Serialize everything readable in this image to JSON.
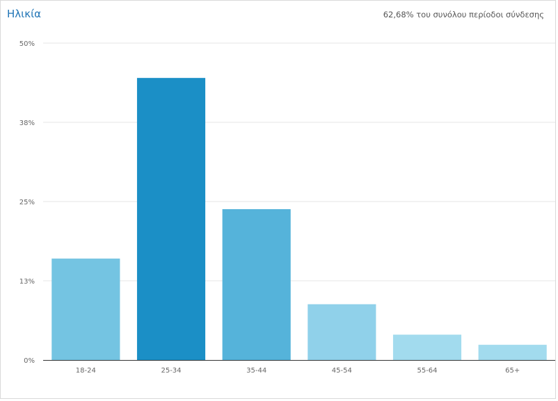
{
  "header": {
    "title": "Ηλικία",
    "summary": "62,68% του συνόλου περίοδοι σύνδεσης"
  },
  "chart_data": {
    "type": "bar",
    "categories": [
      "18-24",
      "25-34",
      "35-44",
      "45-54",
      "55-64",
      "65+"
    ],
    "values": [
      16,
      44.5,
      23.8,
      8.8,
      4,
      2.4
    ],
    "y_tick_labels": [
      "0%",
      "13%",
      "25%",
      "38%",
      "50%"
    ],
    "ylim": [
      0,
      50
    ],
    "grid": true,
    "bar_colors": [
      "#74c4e2",
      "#1b8fc6",
      "#55b3da",
      "#90d1ea",
      "#a2dbee",
      "#a2dbee"
    ]
  }
}
